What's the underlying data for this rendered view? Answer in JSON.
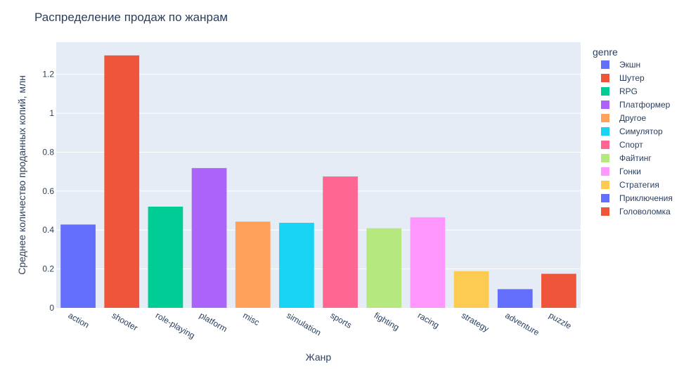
{
  "chart_data": {
    "type": "bar",
    "title": "Распределение продаж по жанрам",
    "xlabel": "Жанр",
    "ylabel": "Среднее количество проданных копий, млн",
    "categories": [
      "action",
      "shooter",
      "role-playing",
      "platform",
      "misc",
      "simulation",
      "sports",
      "fighting",
      "racing",
      "strategy",
      "adventure",
      "puzzle"
    ],
    "values": [
      0.428,
      1.297,
      0.52,
      0.718,
      0.443,
      0.437,
      0.675,
      0.409,
      0.465,
      0.188,
      0.096,
      0.175
    ],
    "colors": [
      "#636efa",
      "#EF553B",
      "#00cc96",
      "#ab63fa",
      "#FFA15A",
      "#19d3f3",
      "#FF6692",
      "#B6E880",
      "#FF97FF",
      "#FECB52",
      "#636efa",
      "#EF553B"
    ],
    "ylim": [
      0,
      1.365
    ],
    "yticks": [
      0,
      0.2,
      0.4,
      0.6,
      0.8,
      1,
      1.2
    ],
    "ytick_labels": [
      "0",
      "0.2",
      "0.4",
      "0.6",
      "0.8",
      "1",
      "1.2"
    ],
    "grid": true,
    "legend": {
      "title": "genre",
      "position": "right",
      "entries": [
        "Экшн",
        "Шутер",
        "RPG",
        "Платформер",
        "Другое",
        "Симулятор",
        "Спорт",
        "Файтинг",
        "Гонки",
        "Стратегия",
        "Приключения",
        "Головоломка"
      ]
    }
  }
}
